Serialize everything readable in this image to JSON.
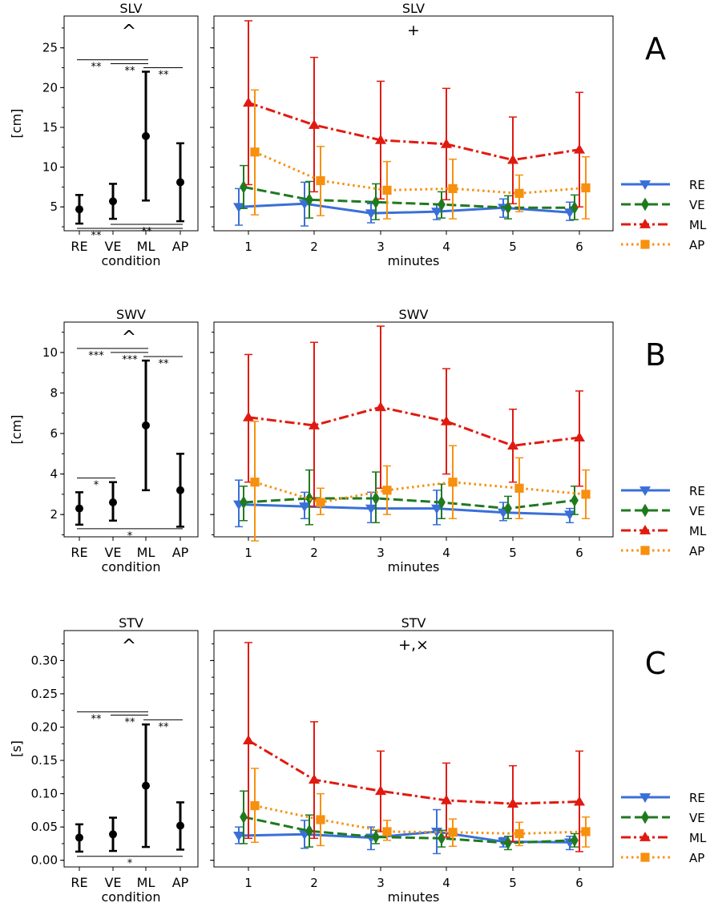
{
  "panels": [
    {
      "letter": "A",
      "top": {
        "left": "SLV",
        "right": "SLV"
      },
      "ylabel": "[cm]",
      "xlabel_left": "condition",
      "xlabel_right": "minutes",
      "marker_left": "^",
      "marker_right": "+",
      "ylim": [
        2,
        29
      ],
      "yticks": [
        5,
        10,
        15,
        20,
        25
      ],
      "ytick_labels": [
        "5",
        "10",
        "15",
        "20",
        "25"
      ],
      "summary": {
        "categories": [
          "RE",
          "VE",
          "ML",
          "AP"
        ],
        "mean": [
          4.7,
          5.7,
          13.9,
          8.1
        ],
        "lower": [
          2.9,
          3.5,
          5.8,
          3.2
        ],
        "upper": [
          6.5,
          7.9,
          22.0,
          13.0
        ]
      },
      "sig_lines": [
        {
          "from": 0,
          "to": 2,
          "y": 23.5,
          "label": "**",
          "label_at": 0.5
        },
        {
          "from": 1,
          "to": 2,
          "y": 23.0,
          "label": "**",
          "label_at": 1.5
        },
        {
          "from": 2,
          "to": 3,
          "y": 22.5,
          "label": "**",
          "label_at": 2.5
        },
        {
          "from": 0,
          "to": 3,
          "y": 2.3,
          "label": "**",
          "label_at": 0.5
        },
        {
          "from": 1,
          "to": 3,
          "y": 2.8,
          "label": "**",
          "label_at": 2.0
        }
      ],
      "time": {
        "x": [
          1,
          2,
          3,
          4,
          5,
          6
        ],
        "series": [
          {
            "name": "RE",
            "mean": [
              5.0,
              5.4,
              4.2,
              4.4,
              4.9,
              4.3
            ],
            "lower": [
              2.7,
              2.6,
              3.0,
              3.4,
              3.7,
              3.3
            ],
            "upper": [
              7.3,
              8.1,
              5.4,
              5.4,
              6.0,
              5.6
            ]
          },
          {
            "name": "VE",
            "mean": [
              7.5,
              5.9,
              5.6,
              5.3,
              4.9,
              4.9
            ],
            "lower": [
              4.8,
              3.6,
              3.4,
              3.6,
              3.5,
              3.4
            ],
            "upper": [
              10.2,
              8.2,
              7.9,
              6.9,
              6.4,
              6.5
            ]
          },
          {
            "name": "ML",
            "mean": [
              18.1,
              15.3,
              13.4,
              12.9,
              10.9,
              12.2
            ],
            "lower": [
              7.8,
              6.9,
              6.0,
              5.9,
              5.4,
              5.0
            ],
            "upper": [
              28.4,
              23.8,
              20.8,
              19.9,
              16.3,
              19.4
            ]
          },
          {
            "name": "AP",
            "mean": [
              11.9,
              8.3,
              7.1,
              7.3,
              6.7,
              7.4
            ],
            "lower": [
              4.0,
              3.9,
              3.5,
              3.5,
              4.4,
              3.5
            ],
            "upper": [
              19.7,
              12.6,
              10.7,
              11.0,
              9.0,
              11.3
            ]
          }
        ]
      }
    },
    {
      "letter": "B",
      "top": {
        "left": "SWV",
        "right": "SWV"
      },
      "ylabel": "[cm]",
      "xlabel_left": "condition",
      "xlabel_right": "minutes",
      "marker_left": "^",
      "marker_right": "",
      "ylim": [
        0.9,
        11.5
      ],
      "yticks": [
        2,
        4,
        6,
        8,
        10
      ],
      "ytick_labels": [
        "2",
        "4",
        "6",
        "8",
        "10"
      ],
      "summary": {
        "categories": [
          "RE",
          "VE",
          "ML",
          "AP"
        ],
        "mean": [
          2.3,
          2.6,
          6.4,
          3.2
        ],
        "lower": [
          1.5,
          1.7,
          3.2,
          1.4
        ],
        "upper": [
          3.1,
          3.6,
          9.6,
          5.0
        ]
      },
      "sig_lines": [
        {
          "from": 0,
          "to": 2,
          "y": 10.2,
          "label": "***",
          "label_at": 0.5
        },
        {
          "from": 1,
          "to": 2,
          "y": 10.0,
          "label": "***",
          "label_at": 1.5
        },
        {
          "from": 2,
          "to": 3,
          "y": 9.8,
          "label": "**",
          "label_at": 2.5
        },
        {
          "from": 0,
          "to": 1,
          "y": 3.8,
          "label": "*",
          "label_at": 0.5
        },
        {
          "from": 0,
          "to": 3,
          "y": 1.3,
          "label": "*",
          "label_at": 1.5
        }
      ],
      "time": {
        "x": [
          1,
          2,
          3,
          4,
          5,
          6
        ],
        "series": [
          {
            "name": "RE",
            "mean": [
              2.5,
              2.4,
              2.3,
              2.3,
              2.1,
              2.0
            ],
            "lower": [
              1.4,
              1.8,
              1.6,
              1.5,
              1.7,
              1.6
            ],
            "upper": [
              3.7,
              3.1,
              3.1,
              3.2,
              2.6,
              2.3
            ]
          },
          {
            "name": "VE",
            "mean": [
              2.6,
              2.8,
              2.8,
              2.6,
              2.3,
              2.7
            ],
            "lower": [
              1.7,
              1.5,
              1.6,
              1.8,
              1.8,
              2.0
            ],
            "upper": [
              3.4,
              4.2,
              4.1,
              3.5,
              2.9,
              3.4
            ]
          },
          {
            "name": "ML",
            "mean": [
              6.8,
              6.4,
              7.3,
              6.6,
              5.4,
              5.8
            ],
            "lower": [
              3.6,
              2.4,
              3.3,
              4.0,
              3.6,
              3.4
            ],
            "upper": [
              9.9,
              10.5,
              11.3,
              9.2,
              7.2,
              8.1
            ]
          },
          {
            "name": "AP",
            "mean": [
              3.6,
              2.6,
              3.2,
              3.6,
              3.3,
              3.0
            ],
            "lower": [
              0.7,
              2.0,
              2.0,
              1.8,
              1.8,
              1.8
            ],
            "upper": [
              6.6,
              3.3,
              4.4,
              5.4,
              4.8,
              4.2
            ]
          }
        ]
      }
    },
    {
      "letter": "C",
      "top": {
        "left": "STV",
        "right": "STV"
      },
      "ylabel": "[s]",
      "xlabel_left": "condition",
      "xlabel_right": "minutes",
      "marker_left": "^",
      "marker_right": "+,×",
      "ylim": [
        -0.01,
        0.345
      ],
      "yticks": [
        0.0,
        0.05,
        0.1,
        0.15,
        0.2,
        0.25,
        0.3
      ],
      "ytick_labels": [
        "0.00",
        "0.05",
        "0.10",
        "0.15",
        "0.20",
        "0.25",
        "0.30"
      ],
      "summary": {
        "categories": [
          "RE",
          "VE",
          "ML",
          "AP"
        ],
        "mean": [
          0.034,
          0.039,
          0.112,
          0.052
        ],
        "lower": [
          0.013,
          0.014,
          0.02,
          0.016
        ],
        "upper": [
          0.054,
          0.064,
          0.204,
          0.087
        ]
      },
      "sig_lines": [
        {
          "from": 0,
          "to": 2,
          "y": 0.223,
          "label": "**",
          "label_at": 0.5
        },
        {
          "from": 1,
          "to": 2,
          "y": 0.218,
          "label": "**",
          "label_at": 1.5
        },
        {
          "from": 2,
          "to": 3,
          "y": 0.211,
          "label": "**",
          "label_at": 2.5
        },
        {
          "from": 0,
          "to": 3,
          "y": 0.006,
          "label": "*",
          "label_at": 1.5
        }
      ],
      "time": {
        "x": [
          1,
          2,
          3,
          4,
          5,
          6
        ],
        "series": [
          {
            "name": "RE",
            "mean": [
              0.037,
              0.039,
              0.034,
              0.043,
              0.028,
              0.027
            ],
            "lower": [
              0.025,
              0.018,
              0.016,
              0.01,
              0.02,
              0.016
            ],
            "upper": [
              0.05,
              0.06,
              0.05,
              0.076,
              0.034,
              0.036
            ]
          },
          {
            "name": "VE",
            "mean": [
              0.065,
              0.044,
              0.035,
              0.033,
              0.026,
              0.03
            ],
            "lower": [
              0.025,
              0.02,
              0.025,
              0.02,
              0.016,
              0.02
            ],
            "upper": [
              0.104,
              0.068,
              0.045,
              0.045,
              0.036,
              0.04
            ]
          },
          {
            "name": "ML",
            "mean": [
              0.18,
              0.121,
              0.104,
              0.09,
              0.085,
              0.088
            ],
            "lower": [
              0.033,
              0.033,
              0.043,
              0.035,
              0.028,
              0.013
            ],
            "upper": [
              0.327,
              0.208,
              0.164,
              0.146,
              0.142,
              0.164
            ]
          },
          {
            "name": "AP",
            "mean": [
              0.082,
              0.061,
              0.043,
              0.042,
              0.04,
              0.043
            ],
            "lower": [
              0.027,
              0.022,
              0.03,
              0.021,
              0.022,
              0.02
            ],
            "upper": [
              0.138,
              0.1,
              0.06,
              0.062,
              0.057,
              0.065
            ]
          }
        ]
      }
    }
  ],
  "legend": {
    "RE": {
      "color": "#3a6fd8",
      "marker": "triangle-down",
      "dash": "solid"
    },
    "VE": {
      "color": "#1f7a1f",
      "marker": "diamond",
      "dash": "dashed"
    },
    "ML": {
      "color": "#e01a10",
      "marker": "triangle-up",
      "dash": "dashdot"
    },
    "AP": {
      "color": "#f7900f",
      "marker": "square",
      "dash": "dotted"
    }
  },
  "chart_data": [
    {
      "type": "scatter",
      "title": "SLV",
      "ylabel": "[cm]",
      "xlabel": "condition",
      "categories": [
        "RE",
        "VE",
        "ML",
        "AP"
      ],
      "values": [
        4.7,
        5.7,
        13.9,
        8.1
      ]
    },
    {
      "type": "line",
      "title": "SLV",
      "xlabel": "minutes",
      "x": [
        1,
        2,
        3,
        4,
        5,
        6
      ],
      "series": [
        {
          "name": "RE",
          "values": [
            5.0,
            5.4,
            4.2,
            4.4,
            4.9,
            4.3
          ]
        },
        {
          "name": "VE",
          "values": [
            7.5,
            5.9,
            5.6,
            5.3,
            4.9,
            4.9
          ]
        },
        {
          "name": "ML",
          "values": [
            18.1,
            15.3,
            13.4,
            12.9,
            10.9,
            12.2
          ]
        },
        {
          "name": "AP",
          "values": [
            11.9,
            8.3,
            7.1,
            7.3,
            6.7,
            7.4
          ]
        }
      ]
    },
    {
      "type": "scatter",
      "title": "SWV",
      "ylabel": "[cm]",
      "xlabel": "condition",
      "categories": [
        "RE",
        "VE",
        "ML",
        "AP"
      ],
      "values": [
        2.3,
        2.6,
        6.4,
        3.2
      ]
    },
    {
      "type": "line",
      "title": "SWV",
      "xlabel": "minutes",
      "x": [
        1,
        2,
        3,
        4,
        5,
        6
      ],
      "series": [
        {
          "name": "RE",
          "values": [
            2.5,
            2.4,
            2.3,
            2.3,
            2.1,
            2.0
          ]
        },
        {
          "name": "VE",
          "values": [
            2.6,
            2.8,
            2.8,
            2.6,
            2.3,
            2.7
          ]
        },
        {
          "name": "ML",
          "values": [
            6.8,
            6.4,
            7.3,
            6.6,
            5.4,
            5.8
          ]
        },
        {
          "name": "AP",
          "values": [
            3.6,
            2.6,
            3.2,
            3.6,
            3.3,
            3.0
          ]
        }
      ]
    },
    {
      "type": "scatter",
      "title": "STV",
      "ylabel": "[s]",
      "xlabel": "condition",
      "categories": [
        "RE",
        "VE",
        "ML",
        "AP"
      ],
      "values": [
        0.034,
        0.039,
        0.112,
        0.052
      ]
    },
    {
      "type": "line",
      "title": "STV",
      "xlabel": "minutes",
      "x": [
        1,
        2,
        3,
        4,
        5,
        6
      ],
      "series": [
        {
          "name": "RE",
          "values": [
            0.037,
            0.039,
            0.034,
            0.043,
            0.028,
            0.027
          ]
        },
        {
          "name": "VE",
          "values": [
            0.065,
            0.044,
            0.035,
            0.033,
            0.026,
            0.03
          ]
        },
        {
          "name": "ML",
          "values": [
            0.18,
            0.121,
            0.104,
            0.09,
            0.085,
            0.088
          ]
        },
        {
          "name": "AP",
          "values": [
            0.082,
            0.061,
            0.043,
            0.042,
            0.04,
            0.043
          ]
        }
      ]
    }
  ]
}
